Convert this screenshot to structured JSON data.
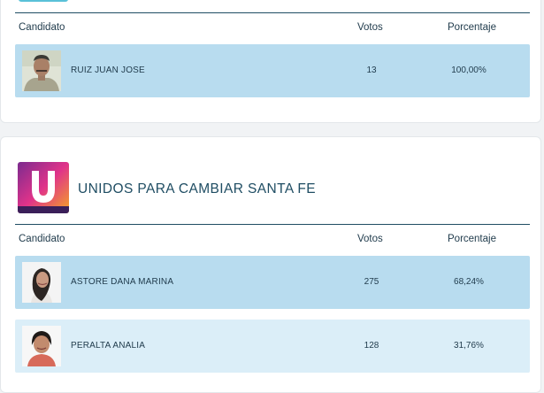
{
  "table_headers": {
    "candidate": "Candidato",
    "votes": "Votos",
    "percentage": "Porcentaje"
  },
  "block1": {
    "rows": [
      {
        "name": "RUIZ JUAN JOSE",
        "votes": "13",
        "percentage": "100,00%"
      }
    ]
  },
  "block2": {
    "party_name": "UNIDOS PARA CAMBIAR SANTA FE",
    "logo_letter": "U",
    "logo_caption": "UNIDOS PARA CAMBIAR SANTA FE",
    "rows": [
      {
        "name": "ASTORE DANA MARINA",
        "votes": "275",
        "percentage": "68,24%"
      },
      {
        "name": "PERALTA ANALIA",
        "votes": "128",
        "percentage": "31,76%"
      }
    ]
  },
  "colors": {
    "primary_row": "#b8dcef",
    "secondary_row": "#dbeef8",
    "header_rule": "#1f4d63",
    "logo_gradient": [
      "#7b2b8f",
      "#e0338a",
      "#f5a623"
    ]
  }
}
